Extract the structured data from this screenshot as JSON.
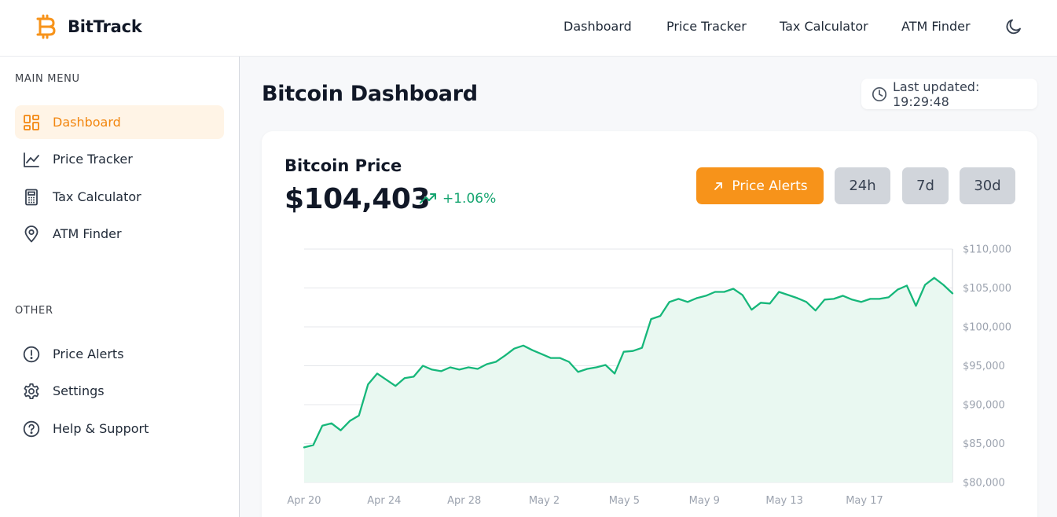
{
  "brand": {
    "name": "BitTrack",
    "accent": "#F7931A"
  },
  "topnav": [
    "Dashboard",
    "Price Tracker",
    "Tax Calculator",
    "ATM Finder"
  ],
  "sidebar": {
    "main_title": "MAIN MENU",
    "main_items": [
      {
        "label": "Dashboard",
        "icon": "grid-icon",
        "active": true
      },
      {
        "label": "Price Tracker",
        "icon": "line-chart-icon"
      },
      {
        "label": "Tax Calculator",
        "icon": "calculator-icon"
      },
      {
        "label": "ATM Finder",
        "icon": "map-pin-icon"
      }
    ],
    "other_title": "OTHER",
    "other_items": [
      {
        "label": "Price Alerts",
        "icon": "alert-circle-icon"
      },
      {
        "label": "Settings",
        "icon": "gear-icon"
      },
      {
        "label": "Help & Support",
        "icon": "help-circle-icon"
      }
    ]
  },
  "page": {
    "title": "Bitcoin Dashboard",
    "last_updated": "Last updated: 19:29:48"
  },
  "card": {
    "title": "Bitcoin Price",
    "price": "$104,403",
    "change": "+1.06%",
    "alert_button": "Price Alerts",
    "ranges": [
      "24h",
      "7d",
      "30d"
    ]
  },
  "chart_data": {
    "type": "area",
    "y_ticks": [
      "$110,000",
      "$105,000",
      "$100,000",
      "$95,000",
      "$90,000",
      "$85,000",
      "$80,000"
    ],
    "x_ticks": [
      "Apr 20",
      "Apr 24",
      "Apr 28",
      "May 2",
      "May 5",
      "May 9",
      "May 13",
      "May 17"
    ],
    "ylim": [
      80000,
      110000
    ],
    "grid": true,
    "line_color": "#16B77A",
    "fill_color": "#E9F8F1",
    "series": [
      {
        "values": [
          84500,
          84800,
          87300,
          87600,
          86700,
          87900,
          88600,
          92600,
          94000,
          93200,
          92400,
          93400,
          93600,
          95000,
          94500,
          94300,
          94800,
          94500,
          94800,
          94600,
          95200,
          95500,
          96300,
          97200,
          97600,
          97000,
          96500,
          96000,
          96000,
          95500,
          94200,
          94600,
          94800,
          95100,
          94000,
          96800,
          96900,
          97300,
          101000,
          101400,
          103200,
          103600,
          103200,
          103700,
          104000,
          104500,
          104500,
          104900,
          104100,
          102200,
          103100,
          103000,
          104500,
          104100,
          103700,
          103200,
          102100,
          103500,
          103600,
          104000,
          103500,
          103200,
          103600,
          103600,
          103800,
          104800,
          105300,
          102700,
          105400,
          106300,
          105400,
          104300
        ]
      }
    ]
  }
}
